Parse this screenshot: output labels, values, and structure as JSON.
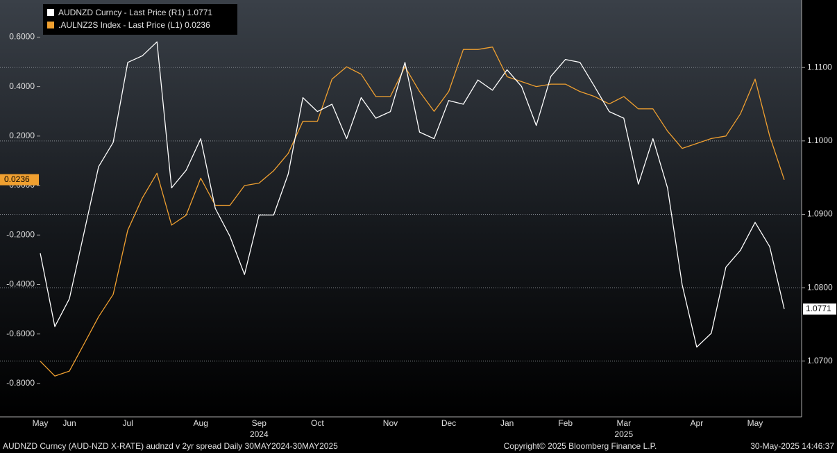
{
  "chart_data": {
    "type": "line",
    "footer_left": "AUDNZD Curncy (AUD-NZD X-RATE) audnzd v 2yr spread  Daily 30MAY2024-30MAY2025",
    "footer_center": "Copyright© 2025 Bloomberg Finance L.P.",
    "footer_right": "30-May-2025 14:46:37",
    "categories": [
      "May",
      null,
      "Jun",
      null,
      null,
      null,
      "Jul",
      null,
      null,
      null,
      null,
      "Aug",
      null,
      null,
      null,
      "Sep",
      null,
      null,
      null,
      "Oct",
      null,
      null,
      null,
      null,
      "Nov",
      null,
      null,
      null,
      "Dec",
      null,
      null,
      null,
      "Jan",
      null,
      null,
      null,
      "Feb",
      null,
      null,
      null,
      "Mar",
      null,
      null,
      null,
      null,
      "Apr",
      null,
      null,
      null,
      "May",
      null,
      null
    ],
    "category_years": [
      null,
      null,
      null,
      null,
      null,
      null,
      null,
      null,
      null,
      null,
      null,
      null,
      null,
      null,
      null,
      "2024",
      null,
      null,
      null,
      null,
      null,
      null,
      null,
      null,
      null,
      null,
      null,
      null,
      null,
      null,
      null,
      null,
      null,
      null,
      null,
      null,
      null,
      null,
      null,
      null,
      "2025",
      null,
      null,
      null,
      null,
      null,
      null,
      null,
      null,
      null,
      null,
      null
    ],
    "series": [
      {
        "name": "AUDNZD Curncy - Last Price (R1)",
        "color": "#ffffff",
        "axis": "y2",
        "values": [
          1.0847,
          1.0747,
          1.0785,
          1.0875,
          1.0965,
          1.0998,
          1.1107,
          1.1116,
          1.1135,
          1.0936,
          1.096,
          1.1003,
          1.0908,
          1.087,
          1.0818,
          1.0899,
          1.0899,
          1.0955,
          1.1059,
          1.104,
          1.105,
          1.1003,
          1.1059,
          1.1031,
          1.104,
          1.1107,
          1.1012,
          1.1003,
          1.1055,
          1.105,
          1.1083,
          1.1069,
          1.1097,
          1.1074,
          1.1021,
          1.1088,
          1.1111,
          1.1107,
          1.1074,
          1.104,
          1.1031,
          1.0941,
          1.1003,
          1.0936,
          1.0804,
          1.0719,
          1.0738,
          1.0828,
          1.0851,
          1.0889,
          1.0856,
          1.0771
        ]
      },
      {
        "name": ".AULNZ2S Index - Last Price (L1)",
        "color": "#f0a030",
        "values": [
          -0.71,
          -0.77,
          -0.75,
          -0.64,
          -0.53,
          -0.44,
          -0.18,
          -0.05,
          0.05,
          -0.16,
          -0.12,
          0.03,
          -0.08,
          -0.08,
          0.0,
          0.01,
          0.06,
          0.13,
          0.26,
          0.26,
          0.43,
          0.48,
          0.45,
          0.36,
          0.36,
          0.48,
          0.38,
          0.3,
          0.38,
          0.55,
          0.55,
          0.56,
          0.44,
          0.42,
          0.4,
          0.41,
          0.41,
          0.38,
          0.36,
          0.33,
          0.36,
          0.31,
          0.31,
          0.22,
          0.15,
          0.17,
          0.19,
          0.2,
          0.29,
          0.43,
          0.2,
          0.0236
        ]
      }
    ],
    "ylim": [
      -0.935,
      0.75
    ],
    "yticks": [
      {
        "value": -0.8,
        "label": "-0.8000"
      },
      {
        "value": -0.6,
        "label": "-0.6000"
      },
      {
        "value": -0.4,
        "label": "-0.4000"
      },
      {
        "value": -0.2,
        "label": "-0.2000"
      },
      {
        "value": 0,
        "label": "0.0000"
      },
      {
        "value": 0.2,
        "label": "0.2000"
      },
      {
        "value": 0.4,
        "label": "0.4000"
      },
      {
        "value": 0.6,
        "label": "0.6000"
      }
    ],
    "y2lim": [
      1.0624,
      1.1192
    ],
    "y2ticks": [
      {
        "value": 1.07,
        "label": "1.0700"
      },
      {
        "value": 1.08,
        "label": "1.0800"
      },
      {
        "value": 1.09,
        "label": "1.0900"
      },
      {
        "value": 1.1,
        "label": "1.1000"
      },
      {
        "value": 1.11,
        "label": "1.1100"
      }
    ],
    "grid": "y2"
  }
}
